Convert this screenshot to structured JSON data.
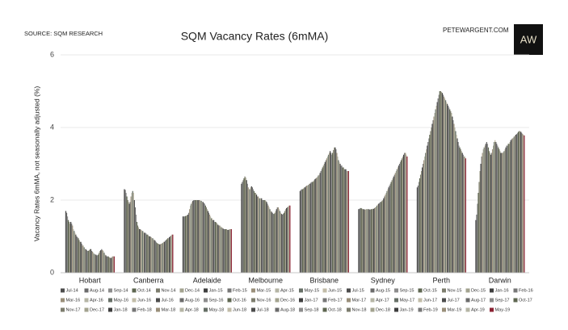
{
  "chart_data": {
    "type": "bar",
    "title": "SQM Vacancy Rates (6mMA)",
    "source": "SOURCE: SQM RESEARCH",
    "website": "PETEWARGENT.COM",
    "logo": "AW",
    "y_label": "Vacancy Rates 6mMA, not seasonally adjusted (%)",
    "categories": [
      "Hobart",
      "Canberra",
      "Adelaide",
      "Melbourne",
      "Brisbane",
      "Sydney",
      "Perth",
      "Darwin"
    ],
    "ylim": [
      0,
      6
    ],
    "yticks": [
      0,
      2,
      4,
      6
    ],
    "grid": true,
    "series": [
      {
        "name": "Jul-14",
        "color": "#4d4d4d",
        "values": [
          1.7,
          2.3,
          1.55,
          2.45,
          2.25,
          1.75,
          2.35,
          1.45
        ]
      },
      {
        "name": "Aug-14",
        "color": "#6b6b6b",
        "values": [
          1.65,
          2.28,
          1.55,
          2.5,
          2.28,
          1.76,
          2.4,
          1.6
        ]
      },
      {
        "name": "Sep-14",
        "color": "#8c8c8c",
        "values": [
          1.55,
          2.2,
          1.55,
          2.55,
          2.3,
          1.78,
          2.5,
          1.9
        ]
      },
      {
        "name": "Oct-14",
        "color": "#5e6650",
        "values": [
          1.45,
          2.1,
          1.56,
          2.6,
          2.3,
          1.78,
          2.6,
          2.2
        ]
      },
      {
        "name": "Nov-14",
        "color": "#7d7d6e",
        "values": [
          1.4,
          2.0,
          1.57,
          2.65,
          2.32,
          1.76,
          2.7,
          2.5
        ]
      },
      {
        "name": "Dec-14",
        "color": "#a3a38f",
        "values": [
          1.35,
          1.95,
          1.58,
          2.62,
          2.35,
          1.75,
          2.8,
          2.8
        ]
      },
      {
        "name": "Jan-15",
        "color": "#3f3f3f",
        "values": [
          1.4,
          1.9,
          1.6,
          2.55,
          2.35,
          1.75,
          2.9,
          3.0
        ]
      },
      {
        "name": "Feb-15",
        "color": "#777777",
        "values": [
          1.35,
          1.95,
          1.65,
          2.45,
          2.38,
          1.74,
          3.0,
          3.2
        ]
      },
      {
        "name": "Mar-15",
        "color": "#9a8f7a",
        "values": [
          1.3,
          2.1,
          1.75,
          2.35,
          2.4,
          1.74,
          3.1,
          3.3
        ]
      },
      {
        "name": "Apr-15",
        "color": "#b5b5a5",
        "values": [
          1.2,
          2.2,
          1.85,
          2.3,
          2.4,
          1.75,
          3.2,
          3.4
        ]
      },
      {
        "name": "May-15",
        "color": "#666f66",
        "values": [
          1.15,
          2.25,
          1.9,
          2.3,
          2.42,
          1.75,
          3.3,
          3.45
        ]
      },
      {
        "name": "Jun-15",
        "color": "#c2bca8",
        "values": [
          1.1,
          2.2,
          1.95,
          2.35,
          2.45,
          1.75,
          3.4,
          3.5
        ]
      },
      {
        "name": "Jul-15",
        "color": "#4d4d4d",
        "values": [
          1.05,
          2.0,
          1.98,
          2.38,
          2.45,
          1.75,
          3.5,
          3.55
        ]
      },
      {
        "name": "Aug-15",
        "color": "#6b6b6b",
        "values": [
          1.0,
          1.8,
          2.0,
          2.35,
          2.48,
          1.74,
          3.6,
          3.6
        ]
      },
      {
        "name": "Sep-15",
        "color": "#8c8c8c",
        "values": [
          0.98,
          1.6,
          2.0,
          2.3,
          2.5,
          1.74,
          3.7,
          3.55
        ]
      },
      {
        "name": "Oct-15",
        "color": "#5e6650",
        "values": [
          0.95,
          1.4,
          2.0,
          2.25,
          2.5,
          1.75,
          3.8,
          3.45
        ]
      },
      {
        "name": "Nov-15",
        "color": "#7d7d6e",
        "values": [
          0.9,
          1.3,
          2.0,
          2.2,
          2.52,
          1.75,
          3.9,
          3.35
        ]
      },
      {
        "name": "Dec-15",
        "color": "#a3a38f",
        "values": [
          0.85,
          1.25,
          2.0,
          2.2,
          2.55,
          1.76,
          4.0,
          3.3
        ]
      },
      {
        "name": "Jan-16",
        "color": "#3f3f3f",
        "values": [
          0.85,
          1.2,
          2.0,
          2.15,
          2.58,
          1.76,
          4.1,
          3.25
        ]
      },
      {
        "name": "Feb-16",
        "color": "#777777",
        "values": [
          0.8,
          1.2,
          2.0,
          2.1,
          2.6,
          1.78,
          4.2,
          3.3
        ]
      },
      {
        "name": "Mar-16",
        "color": "#9a8f7a",
        "values": [
          0.75,
          1.18,
          2.0,
          2.1,
          2.62,
          1.8,
          4.3,
          3.4
        ]
      },
      {
        "name": "Apr-16",
        "color": "#b5b5a5",
        "values": [
          0.75,
          1.15,
          1.98,
          2.05,
          2.65,
          1.82,
          4.4,
          3.5
        ]
      },
      {
        "name": "May-16",
        "color": "#666f66",
        "values": [
          0.7,
          1.15,
          1.98,
          2.05,
          2.68,
          1.85,
          4.5,
          3.6
        ]
      },
      {
        "name": "Jun-16",
        "color": "#c2bca8",
        "values": [
          0.65,
          1.12,
          1.95,
          2.05,
          2.7,
          1.88,
          4.6,
          3.65
        ]
      },
      {
        "name": "Jul-16",
        "color": "#4d4d4d",
        "values": [
          0.65,
          1.1,
          1.95,
          2.05,
          2.75,
          1.9,
          4.7,
          3.6
        ]
      },
      {
        "name": "Aug-16",
        "color": "#6b6b6b",
        "values": [
          0.62,
          1.1,
          1.92,
          2.0,
          2.8,
          1.92,
          4.8,
          3.55
        ]
      },
      {
        "name": "Sep-16",
        "color": "#8c8c8c",
        "values": [
          0.6,
          1.08,
          1.9,
          2.0,
          2.85,
          1.95,
          4.9,
          3.5
        ]
      },
      {
        "name": "Oct-16",
        "color": "#5e6650",
        "values": [
          0.6,
          1.05,
          1.85,
          2.0,
          2.9,
          1.95,
          5.0,
          3.45
        ]
      },
      {
        "name": "Nov-16",
        "color": "#7d7d6e",
        "values": [
          0.62,
          1.05,
          1.8,
          2.0,
          2.95,
          1.98,
          5.0,
          3.4
        ]
      },
      {
        "name": "Dec-16",
        "color": "#a3a38f",
        "values": [
          0.65,
          1.02,
          1.75,
          1.98,
          3.0,
          2.0,
          4.98,
          3.35
        ]
      },
      {
        "name": "Jan-17",
        "color": "#3f3f3f",
        "values": [
          0.65,
          1.0,
          1.7,
          1.95,
          3.05,
          2.05,
          4.95,
          3.3
        ]
      },
      {
        "name": "Feb-17",
        "color": "#777777",
        "values": [
          0.6,
          1.0,
          1.65,
          1.9,
          3.1,
          2.1,
          4.9,
          3.3
        ]
      },
      {
        "name": "Mar-17",
        "color": "#9a8f7a",
        "values": [
          0.58,
          0.98,
          1.6,
          1.85,
          3.15,
          2.15,
          4.85,
          3.3
        ]
      },
      {
        "name": "Apr-17",
        "color": "#b5b5a5",
        "values": [
          0.55,
          0.95,
          1.55,
          1.8,
          3.2,
          2.2,
          4.8,
          3.32
        ]
      },
      {
        "name": "May-17",
        "color": "#666f66",
        "values": [
          0.52,
          0.95,
          1.5,
          1.75,
          3.25,
          2.25,
          4.75,
          3.35
        ]
      },
      {
        "name": "Jun-17",
        "color": "#c2bca8",
        "values": [
          0.5,
          0.92,
          1.5,
          1.7,
          3.3,
          2.3,
          4.7,
          3.4
        ]
      },
      {
        "name": "Jul-17",
        "color": "#4d4d4d",
        "values": [
          0.5,
          0.9,
          1.45,
          1.68,
          3.35,
          2.35,
          4.65,
          3.45
        ]
      },
      {
        "name": "Aug-17",
        "color": "#6b6b6b",
        "values": [
          0.48,
          0.88,
          1.45,
          1.65,
          3.3,
          2.4,
          4.6,
          3.5
        ]
      },
      {
        "name": "Sep-17",
        "color": "#8c8c8c",
        "values": [
          0.48,
          0.85,
          1.4,
          1.62,
          3.25,
          2.45,
          4.55,
          3.5
        ]
      },
      {
        "name": "Oct-17",
        "color": "#5e6650",
        "values": [
          0.5,
          0.82,
          1.4,
          1.62,
          3.3,
          2.5,
          4.5,
          3.55
        ]
      },
      {
        "name": "Nov-17",
        "color": "#7d7d6e",
        "values": [
          0.55,
          0.8,
          1.38,
          1.65,
          3.38,
          2.55,
          4.45,
          3.55
        ]
      },
      {
        "name": "Dec-17",
        "color": "#a3a38f",
        "values": [
          0.6,
          0.8,
          1.35,
          1.7,
          3.45,
          2.6,
          4.4,
          3.6
        ]
      },
      {
        "name": "Jan-18",
        "color": "#3f3f3f",
        "values": [
          0.62,
          0.78,
          1.32,
          1.75,
          3.45,
          2.65,
          4.3,
          3.65
        ]
      },
      {
        "name": "Feb-18",
        "color": "#777777",
        "values": [
          0.65,
          0.78,
          1.3,
          1.8,
          3.4,
          2.7,
          4.2,
          3.68
        ]
      },
      {
        "name": "Mar-18",
        "color": "#9a8f7a",
        "values": [
          0.62,
          0.8,
          1.3,
          1.8,
          3.3,
          2.75,
          4.1,
          3.7
        ]
      },
      {
        "name": "Apr-18",
        "color": "#b5b5a5",
        "values": [
          0.6,
          0.8,
          1.28,
          1.75,
          3.2,
          2.8,
          4.0,
          3.72
        ]
      },
      {
        "name": "May-18",
        "color": "#666f66",
        "values": [
          0.55,
          0.82,
          1.25,
          1.7,
          3.1,
          2.85,
          3.9,
          3.75
        ]
      },
      {
        "name": "Jun-18",
        "color": "#c2bca8",
        "values": [
          0.5,
          0.85,
          1.25,
          1.65,
          3.05,
          2.9,
          3.8,
          3.78
        ]
      },
      {
        "name": "Jul-18",
        "color": "#4d4d4d",
        "values": [
          0.48,
          0.85,
          1.22,
          1.62,
          3.0,
          2.95,
          3.7,
          3.8
        ]
      },
      {
        "name": "Aug-18",
        "color": "#6b6b6b",
        "values": [
          0.45,
          0.88,
          1.2,
          1.6,
          2.95,
          3.0,
          3.6,
          3.82
        ]
      },
      {
        "name": "Sep-18",
        "color": "#8c8c8c",
        "values": [
          0.45,
          0.9,
          1.2,
          1.62,
          2.95,
          3.05,
          3.5,
          3.85
        ]
      },
      {
        "name": "Oct-18",
        "color": "#5e6650",
        "values": [
          0.45,
          0.92,
          1.2,
          1.65,
          2.9,
          3.1,
          3.45,
          3.88
        ]
      },
      {
        "name": "Nov-18",
        "color": "#7d7d6e",
        "values": [
          0.42,
          0.95,
          1.2,
          1.7,
          2.9,
          3.15,
          3.4,
          3.9
        ]
      },
      {
        "name": "Dec-18",
        "color": "#a3a38f",
        "values": [
          0.42,
          0.95,
          1.18,
          1.75,
          2.85,
          3.2,
          3.35,
          3.9
        ]
      },
      {
        "name": "Jan-19",
        "color": "#3f3f3f",
        "values": [
          0.4,
          0.98,
          1.18,
          1.78,
          2.85,
          3.25,
          3.3,
          3.88
        ]
      },
      {
        "name": "Feb-19",
        "color": "#777777",
        "values": [
          0.42,
          1.0,
          1.18,
          1.8,
          2.85,
          3.3,
          3.25,
          3.85
        ]
      },
      {
        "name": "Mar-19",
        "color": "#9a8f7a",
        "values": [
          0.45,
          1.02,
          1.2,
          1.82,
          2.8,
          3.3,
          3.2,
          3.82
        ]
      },
      {
        "name": "Apr-19",
        "color": "#b5b5a5",
        "values": [
          0.45,
          1.05,
          1.2,
          1.85,
          2.8,
          3.25,
          3.2,
          3.8
        ]
      },
      {
        "name": "May-19",
        "color": "#8b2232",
        "values": [
          0.45,
          1.05,
          1.2,
          1.85,
          2.8,
          3.2,
          3.15,
          3.78
        ]
      }
    ]
  }
}
